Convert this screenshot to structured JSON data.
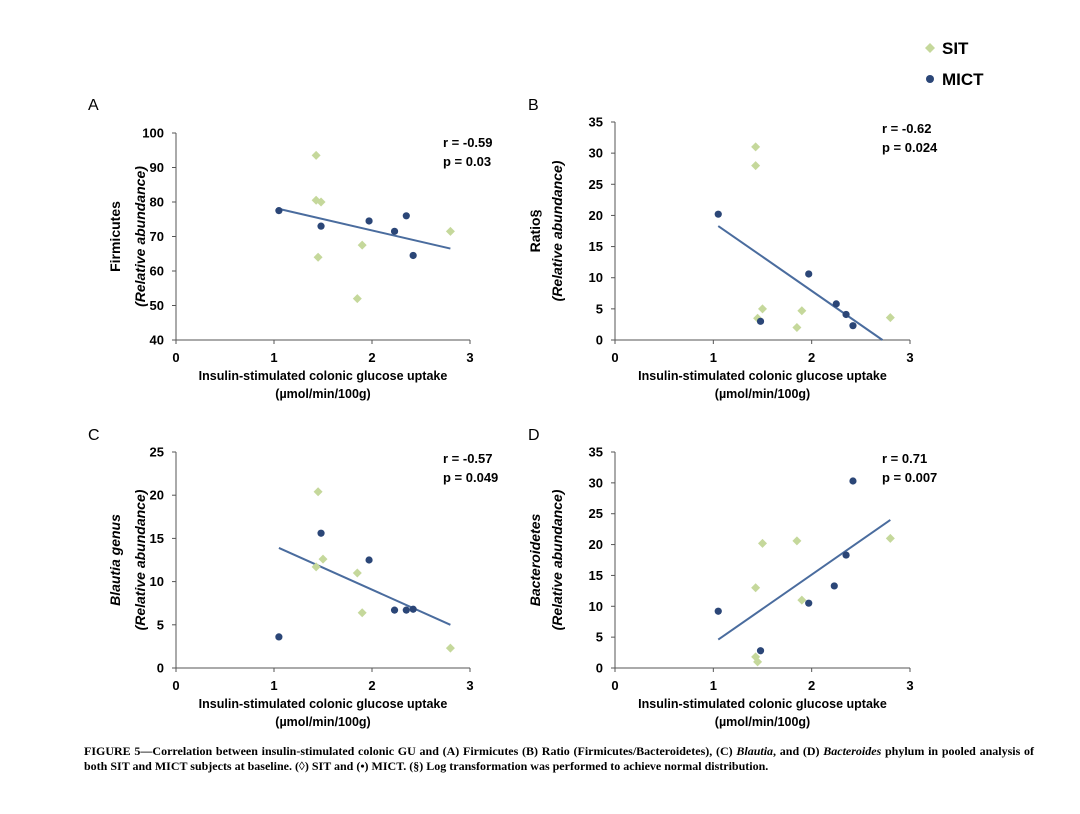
{
  "legend": {
    "items": [
      {
        "label": "SIT",
        "color": "#c5d89b",
        "marker": "diamond"
      },
      {
        "label": "MICT",
        "color": "#2b4677",
        "marker": "circle"
      }
    ]
  },
  "colors": {
    "sit": "#c5d89b",
    "mict": "#2b4677",
    "fit_line": "#4a6c9e",
    "axis": "#555555"
  },
  "chart_data": [
    {
      "type": "scatter",
      "panel_label": "A",
      "ylabel_main": "Firmicutes",
      "ylabel_sub": "(Relative abundance)",
      "ylabel_main_italic": false,
      "xlabel_line1": "Insulin-stimulated colonic glucose uptake",
      "xlabel_line2": "(µmol/min/100g)",
      "xlim": [
        0,
        3
      ],
      "ylim": [
        40,
        100
      ],
      "xticks": [
        "0",
        "1",
        "2",
        "3"
      ],
      "yticks": [
        "40",
        "50",
        "60",
        "70",
        "80",
        "90",
        "100"
      ],
      "grid": false,
      "stat_r": "r = -0.59",
      "stat_p": "p = 0.03",
      "series": [
        {
          "name": "SIT",
          "points": [
            [
              1.43,
              93.5
            ],
            [
              1.43,
              80.5
            ],
            [
              1.48,
              80
            ],
            [
              1.45,
              64
            ],
            [
              1.9,
              67.5
            ],
            [
              1.85,
              52
            ],
            [
              2.8,
              71.5
            ]
          ]
        },
        {
          "name": "MICT",
          "points": [
            [
              1.05,
              77.5
            ],
            [
              1.48,
              73
            ],
            [
              1.97,
              74.5
            ],
            [
              2.23,
              71.5
            ],
            [
              2.35,
              76
            ],
            [
              2.42,
              64.5
            ]
          ]
        }
      ],
      "fit": [
        [
          1.05,
          78
        ],
        [
          2.8,
          66.5
        ]
      ]
    },
    {
      "type": "scatter",
      "panel_label": "B",
      "ylabel_main": "Ratio§",
      "ylabel_sub": "(Relative abundance)",
      "ylabel_main_italic": false,
      "xlabel_line1": "Insulin-stimulated colonic glucose uptake",
      "xlabel_line2": "(µmol/min/100g)",
      "xlim": [
        0,
        3
      ],
      "ylim": [
        0,
        35
      ],
      "xticks": [
        "0",
        "1",
        "2",
        "3"
      ],
      "yticks": [
        "0",
        "5",
        "10",
        "15",
        "20",
        "25",
        "30",
        "35"
      ],
      "grid": false,
      "stat_r": "r = -0.62",
      "stat_p": "p = 0.024",
      "series": [
        {
          "name": "SIT",
          "points": [
            [
              1.43,
              31
            ],
            [
              1.43,
              28
            ],
            [
              1.5,
              5
            ],
            [
              1.45,
              3.5
            ],
            [
              1.9,
              4.7
            ],
            [
              1.85,
              2
            ],
            [
              2.8,
              3.6
            ]
          ]
        },
        {
          "name": "MICT",
          "points": [
            [
              1.05,
              20.2
            ],
            [
              1.48,
              3
            ],
            [
              1.97,
              10.6
            ],
            [
              2.25,
              5.8
            ],
            [
              2.35,
              4.1
            ],
            [
              2.42,
              2.3
            ]
          ]
        }
      ],
      "fit": [
        [
          1.05,
          18.3
        ],
        [
          2.72,
          0
        ]
      ]
    },
    {
      "type": "scatter",
      "panel_label": "C",
      "ylabel_main": "Blautia genus",
      "ylabel_sub": "(Relative abundance)",
      "ylabel_main_italic": true,
      "xlabel_line1": "Insulin-stimulated colonic glucose uptake",
      "xlabel_line2": "(µmol/min/100g)",
      "xlim": [
        0,
        3
      ],
      "ylim": [
        0,
        25
      ],
      "xticks": [
        "0",
        "1",
        "2",
        "3"
      ],
      "yticks": [
        "0",
        "5",
        "10",
        "15",
        "20",
        "25"
      ],
      "grid": false,
      "stat_r": "r = -0.57",
      "stat_p": "p = 0.049",
      "series": [
        {
          "name": "SIT",
          "points": [
            [
              1.45,
              20.4
            ],
            [
              1.5,
              12.6
            ],
            [
              1.43,
              11.7
            ],
            [
              1.85,
              11
            ],
            [
              1.9,
              6.4
            ],
            [
              2.8,
              2.3
            ]
          ]
        },
        {
          "name": "MICT",
          "points": [
            [
              1.05,
              3.6
            ],
            [
              1.48,
              15.6
            ],
            [
              1.97,
              12.5
            ],
            [
              2.23,
              6.7
            ],
            [
              2.35,
              6.7
            ],
            [
              2.42,
              6.8
            ]
          ]
        }
      ],
      "fit": [
        [
          1.05,
          13.9
        ],
        [
          2.8,
          5
        ]
      ]
    },
    {
      "type": "scatter",
      "panel_label": "D",
      "ylabel_main": "Bacteroidetes",
      "ylabel_sub": "(Relative abundance)",
      "ylabel_main_italic": true,
      "xlabel_line1": "Insulin-stimulated colonic glucose uptake",
      "xlabel_line2": "(µmol/min/100g)",
      "xlim": [
        0,
        3
      ],
      "ylim": [
        0,
        35
      ],
      "xticks": [
        "0",
        "1",
        "2",
        "3"
      ],
      "yticks": [
        "0",
        "5",
        "10",
        "15",
        "20",
        "25",
        "30",
        "35"
      ],
      "grid": false,
      "stat_r": "r = 0.71",
      "stat_p": "p = 0.007",
      "series": [
        {
          "name": "SIT",
          "points": [
            [
              1.43,
              13
            ],
            [
              1.5,
              20.2
            ],
            [
              1.85,
              20.6
            ],
            [
              1.9,
              11
            ],
            [
              2.8,
              21
            ],
            [
              1.43,
              1.8
            ],
            [
              1.45,
              1.0
            ]
          ]
        },
        {
          "name": "MICT",
          "points": [
            [
              1.05,
              9.2
            ],
            [
              1.48,
              2.8
            ],
            [
              1.97,
              10.5
            ],
            [
              2.23,
              13.3
            ],
            [
              2.35,
              18.3
            ],
            [
              2.42,
              30.3
            ]
          ]
        }
      ],
      "fit": [
        [
          1.05,
          4.6
        ],
        [
          2.8,
          24
        ]
      ]
    }
  ],
  "caption": {
    "prefix": "FIGURE 5—Correlation between insulin-stimulated colonic GU and (A) Firmicutes (B) Ratio (Firmicutes/Bacteroidetes), (C) ",
    "blautia": "Blautia",
    "mid": ", and (D) ",
    "bacteroides": "Bacteroides",
    "suffix": " phylum in pooled analysis of both SIT and MICT subjects at baseline. (◊) SIT and (•) MICT. (§) Log transformation was performed to achieve normal distribution."
  }
}
